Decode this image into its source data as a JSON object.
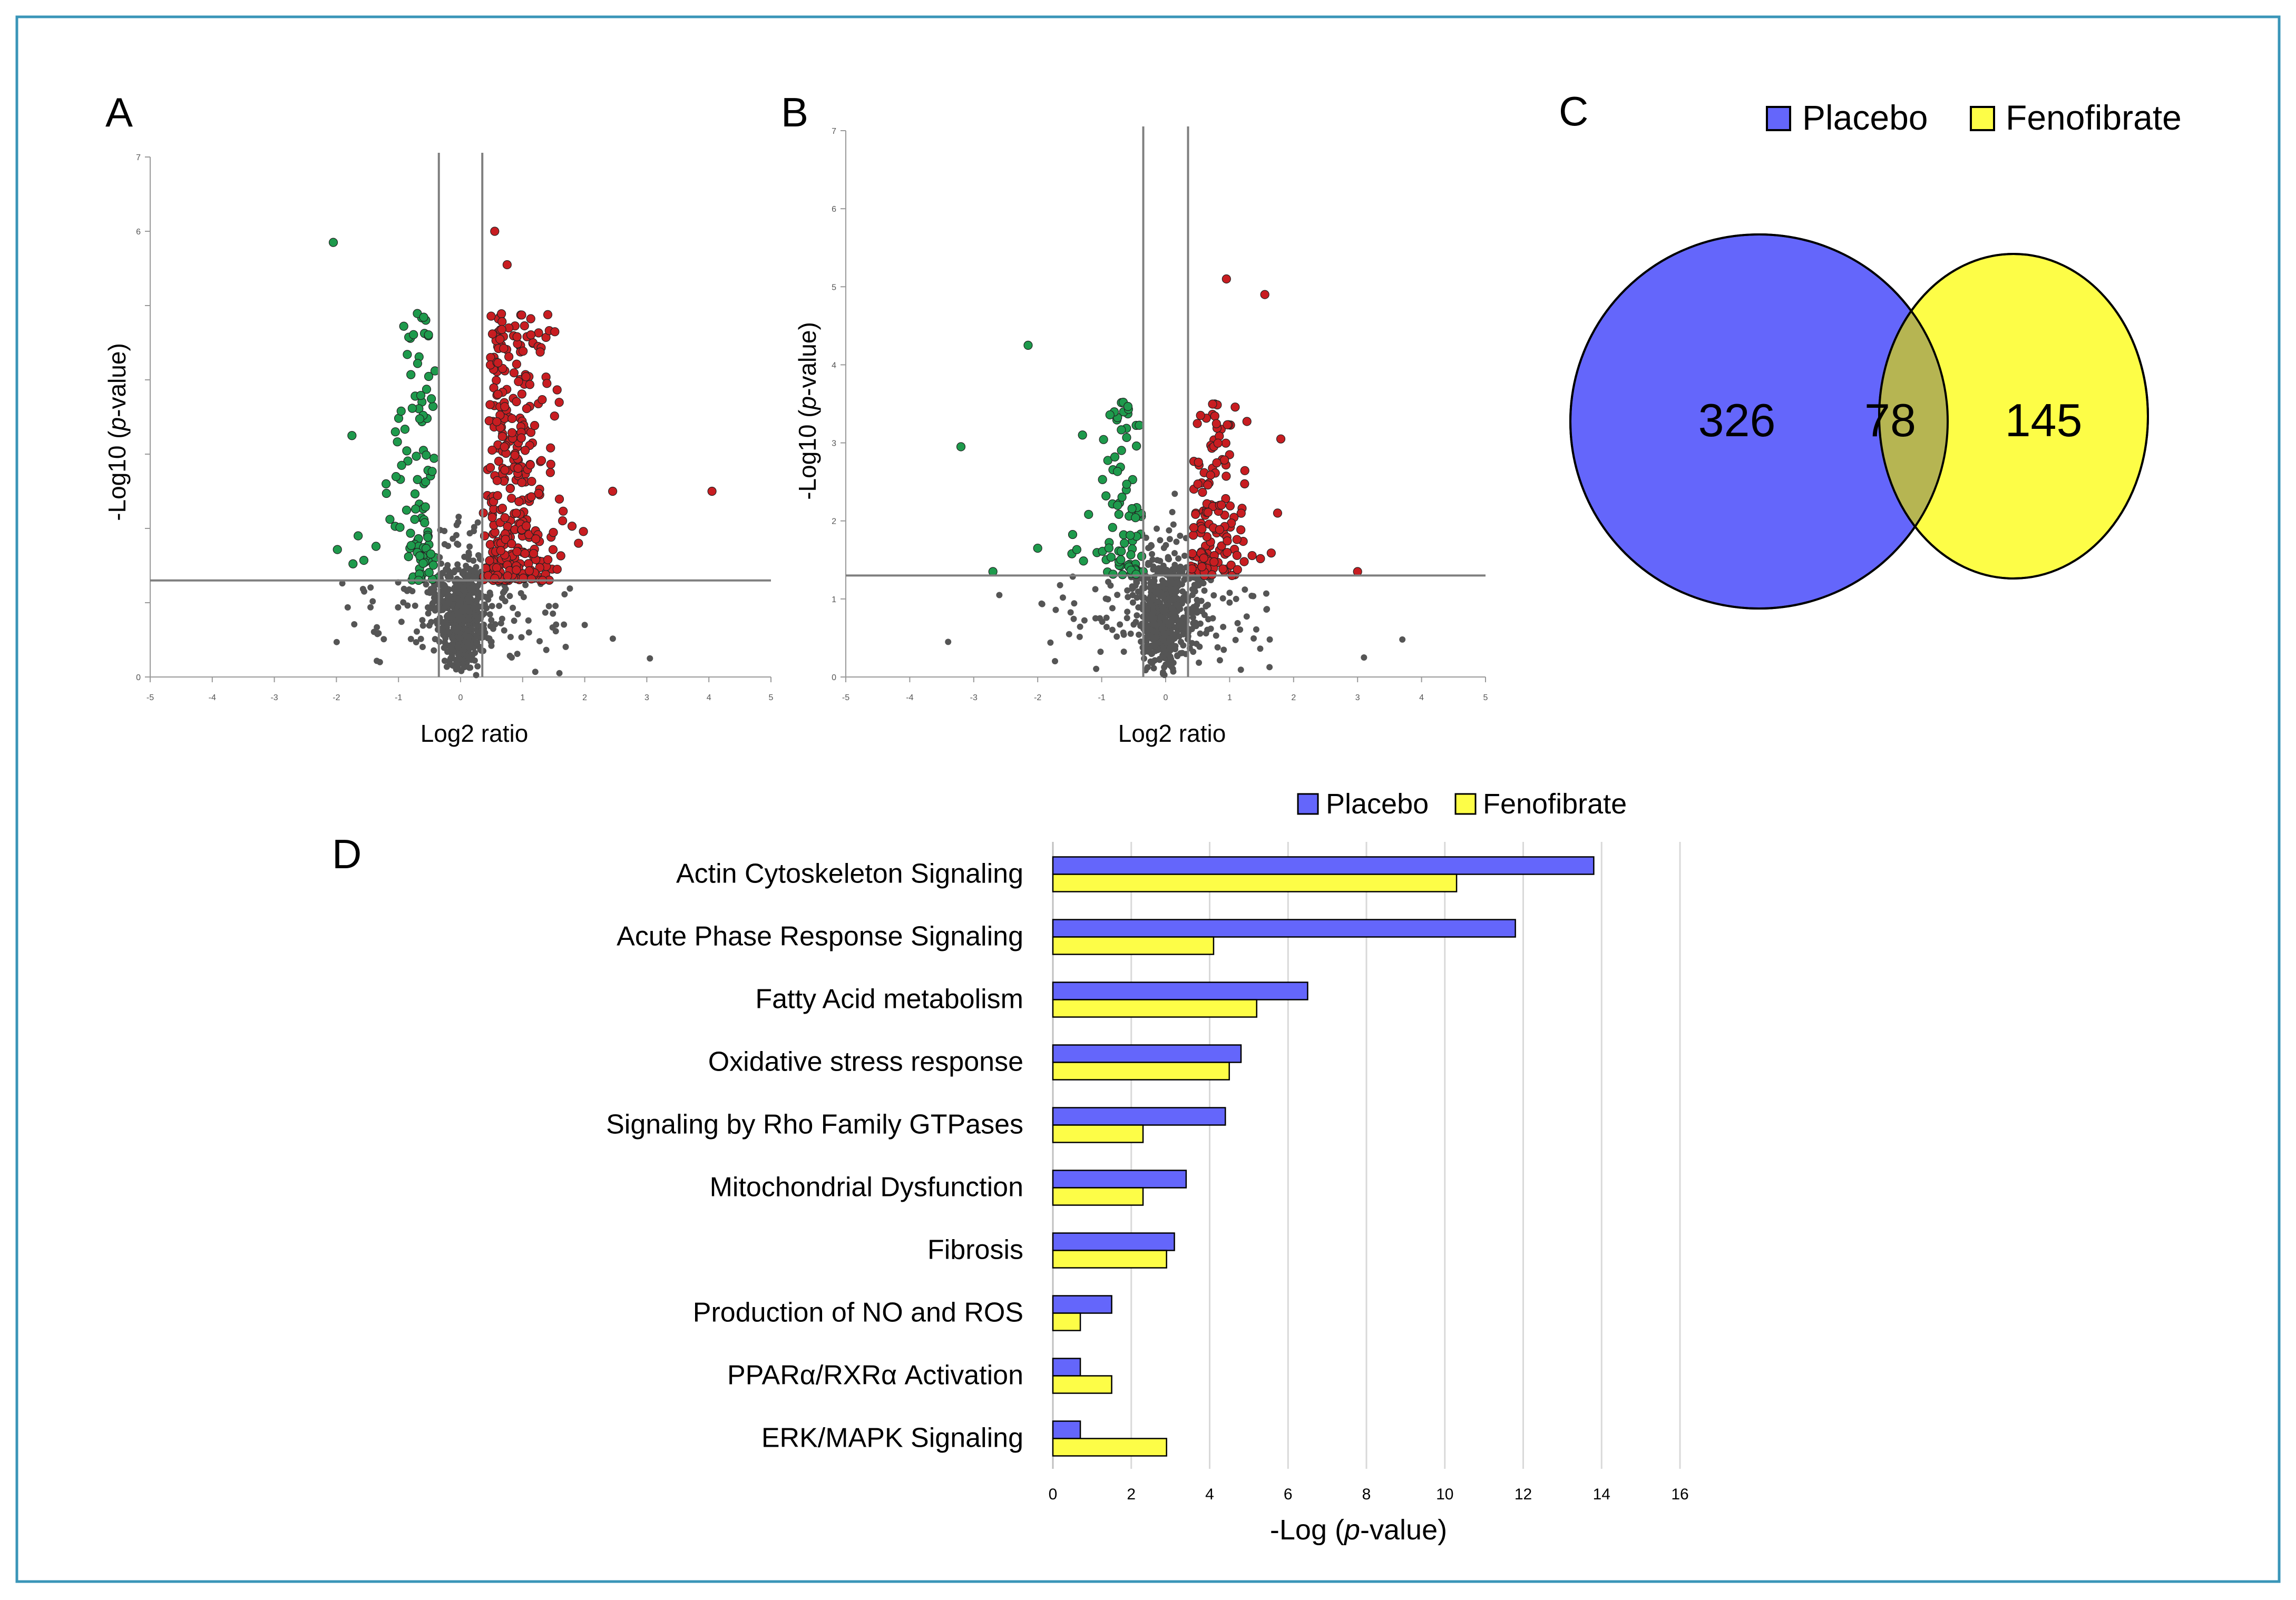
{
  "colors": {
    "frame": "#3a95b8",
    "placebo": "#6466fb",
    "fenofibrate": "#fdfd47",
    "overlap": "#b6b552",
    "down": "#1e9a4c",
    "up": "#c81d21",
    "ns": "#555555",
    "line": "#7f7f7f",
    "grid": "#d9d9d9"
  },
  "panels": {
    "A": {
      "label": "A"
    },
    "B": {
      "label": "B"
    },
    "C": {
      "label": "C"
    },
    "D": {
      "label": "D"
    }
  },
  "chart_data": [
    {
      "id": "A",
      "type": "scatter",
      "title": "",
      "xlabel": "Log2 ratio",
      "ylabel_prefix": "-Log10 (",
      "ylabel_italic": "p",
      "ylabel_suffix": "-value)",
      "xlim": [
        -5,
        5
      ],
      "ylim": [
        0,
        7
      ],
      "xticks": [
        "-5",
        "-4",
        "-3",
        "-2",
        "-1",
        "0",
        "1",
        "2",
        "3",
        "4",
        "5"
      ],
      "yticks": [
        "0",
        "",
        "",
        "",
        "",
        "",
        "6",
        "7"
      ],
      "thresholds": {
        "x": [
          -0.35,
          0.35
        ],
        "y": 1.3
      },
      "seed": 11,
      "counts": {
        "ns": 700,
        "down": 85,
        "up": 320
      },
      "highlights": [
        {
          "x": -2.05,
          "y": 5.85,
          "cls": "down"
        },
        {
          "x": -1.75,
          "y": 3.25,
          "cls": "down"
        },
        {
          "x": -1.65,
          "y": 1.9,
          "cls": "down"
        },
        {
          "x": -1.2,
          "y": 2.6,
          "cls": "down"
        },
        {
          "x": -1.05,
          "y": 3.3,
          "cls": "down"
        },
        {
          "x": 0.55,
          "y": 6.0,
          "cls": "up"
        },
        {
          "x": 0.75,
          "y": 5.55,
          "cls": "up"
        },
        {
          "x": 2.45,
          "y": 2.5,
          "cls": "up"
        },
        {
          "x": 4.05,
          "y": 2.5,
          "cls": "up"
        },
        {
          "x": 1.9,
          "y": 1.8,
          "cls": "up"
        },
        {
          "x": 3.05,
          "y": 0.25,
          "cls": "ns"
        },
        {
          "x": 2.0,
          "y": 0.7,
          "cls": "ns"
        },
        {
          "x": -1.3,
          "y": 0.2,
          "cls": "ns"
        }
      ]
    },
    {
      "id": "B",
      "type": "scatter",
      "title": "",
      "xlabel": "Log2 ratio",
      "ylabel_prefix": "-Log10 (",
      "ylabel_italic": "p",
      "ylabel_suffix": "-value)",
      "xlim": [
        -5,
        5
      ],
      "ylim": [
        0,
        7
      ],
      "xticks": [
        "-5",
        "-4",
        "-3",
        "-2",
        "-1",
        "0",
        "1",
        "2",
        "3",
        "4",
        "5"
      ],
      "yticks": [
        "0",
        "1",
        "2",
        "3",
        "4",
        "5",
        "6",
        "7"
      ],
      "thresholds": {
        "x": [
          -0.35,
          0.35
        ],
        "y": 1.3
      },
      "seed": 23,
      "counts": {
        "ns": 650,
        "down": 60,
        "up": 120
      },
      "highlights": [
        {
          "x": -2.15,
          "y": 4.25,
          "cls": "down"
        },
        {
          "x": -3.2,
          "y": 2.95,
          "cls": "down"
        },
        {
          "x": -2.7,
          "y": 1.35,
          "cls": "down"
        },
        {
          "x": -2.0,
          "y": 1.65,
          "cls": "down"
        },
        {
          "x": -1.3,
          "y": 3.1,
          "cls": "down"
        },
        {
          "x": 0.95,
          "y": 5.1,
          "cls": "up"
        },
        {
          "x": 1.55,
          "y": 4.9,
          "cls": "up"
        },
        {
          "x": 1.8,
          "y": 3.05,
          "cls": "up"
        },
        {
          "x": 1.75,
          "y": 2.1,
          "cls": "up"
        },
        {
          "x": 3.0,
          "y": 1.35,
          "cls": "up"
        },
        {
          "x": 3.7,
          "y": 0.48,
          "cls": "ns"
        },
        {
          "x": 3.1,
          "y": 0.25,
          "cls": "ns"
        },
        {
          "x": -3.4,
          "y": 0.45,
          "cls": "ns"
        },
        {
          "x": -2.6,
          "y": 1.05,
          "cls": "ns"
        }
      ]
    },
    {
      "id": "C",
      "type": "venn",
      "legend": [
        "Placebo",
        "Fenofibrate"
      ],
      "sets": [
        {
          "name": "Placebo",
          "only": 326
        },
        {
          "name": "Fenofibrate",
          "only": 145
        }
      ],
      "overlap": 78,
      "labels": {
        "placebo_only": "326",
        "overlap": "78",
        "fenofibrate_only": "145"
      }
    },
    {
      "id": "D",
      "type": "bar",
      "orientation": "horizontal",
      "categories": [
        "Actin Cytoskeleton Signaling",
        "Acute Phase Response Signaling",
        "Fatty Acid metabolism",
        "Oxidative stress response",
        "Signaling by Rho Family GTPases",
        "Mitochondrial Dysfunction",
        "Fibrosis",
        "Production of NO and ROS",
        "PPARα/RXRα Activation",
        "ERK/MAPK Signaling"
      ],
      "series": [
        {
          "name": "Placebo",
          "values": [
            13.8,
            11.8,
            6.5,
            4.8,
            4.4,
            3.4,
            3.1,
            1.5,
            0.7,
            0.7
          ]
        },
        {
          "name": "Fenofibrate",
          "values": [
            10.3,
            4.1,
            5.2,
            4.5,
            2.3,
            2.3,
            2.9,
            0.7,
            1.5,
            2.9
          ]
        }
      ],
      "xlabel_prefix": "-Log (",
      "xlabel_italic": "p",
      "xlabel_suffix": "-value)",
      "xlim": [
        0,
        16
      ],
      "xticks": [
        "0",
        "2",
        "4",
        "6",
        "8",
        "10",
        "12",
        "14",
        "16"
      ],
      "legend": [
        "Placebo",
        "Fenofibrate"
      ],
      "grid": true
    }
  ]
}
